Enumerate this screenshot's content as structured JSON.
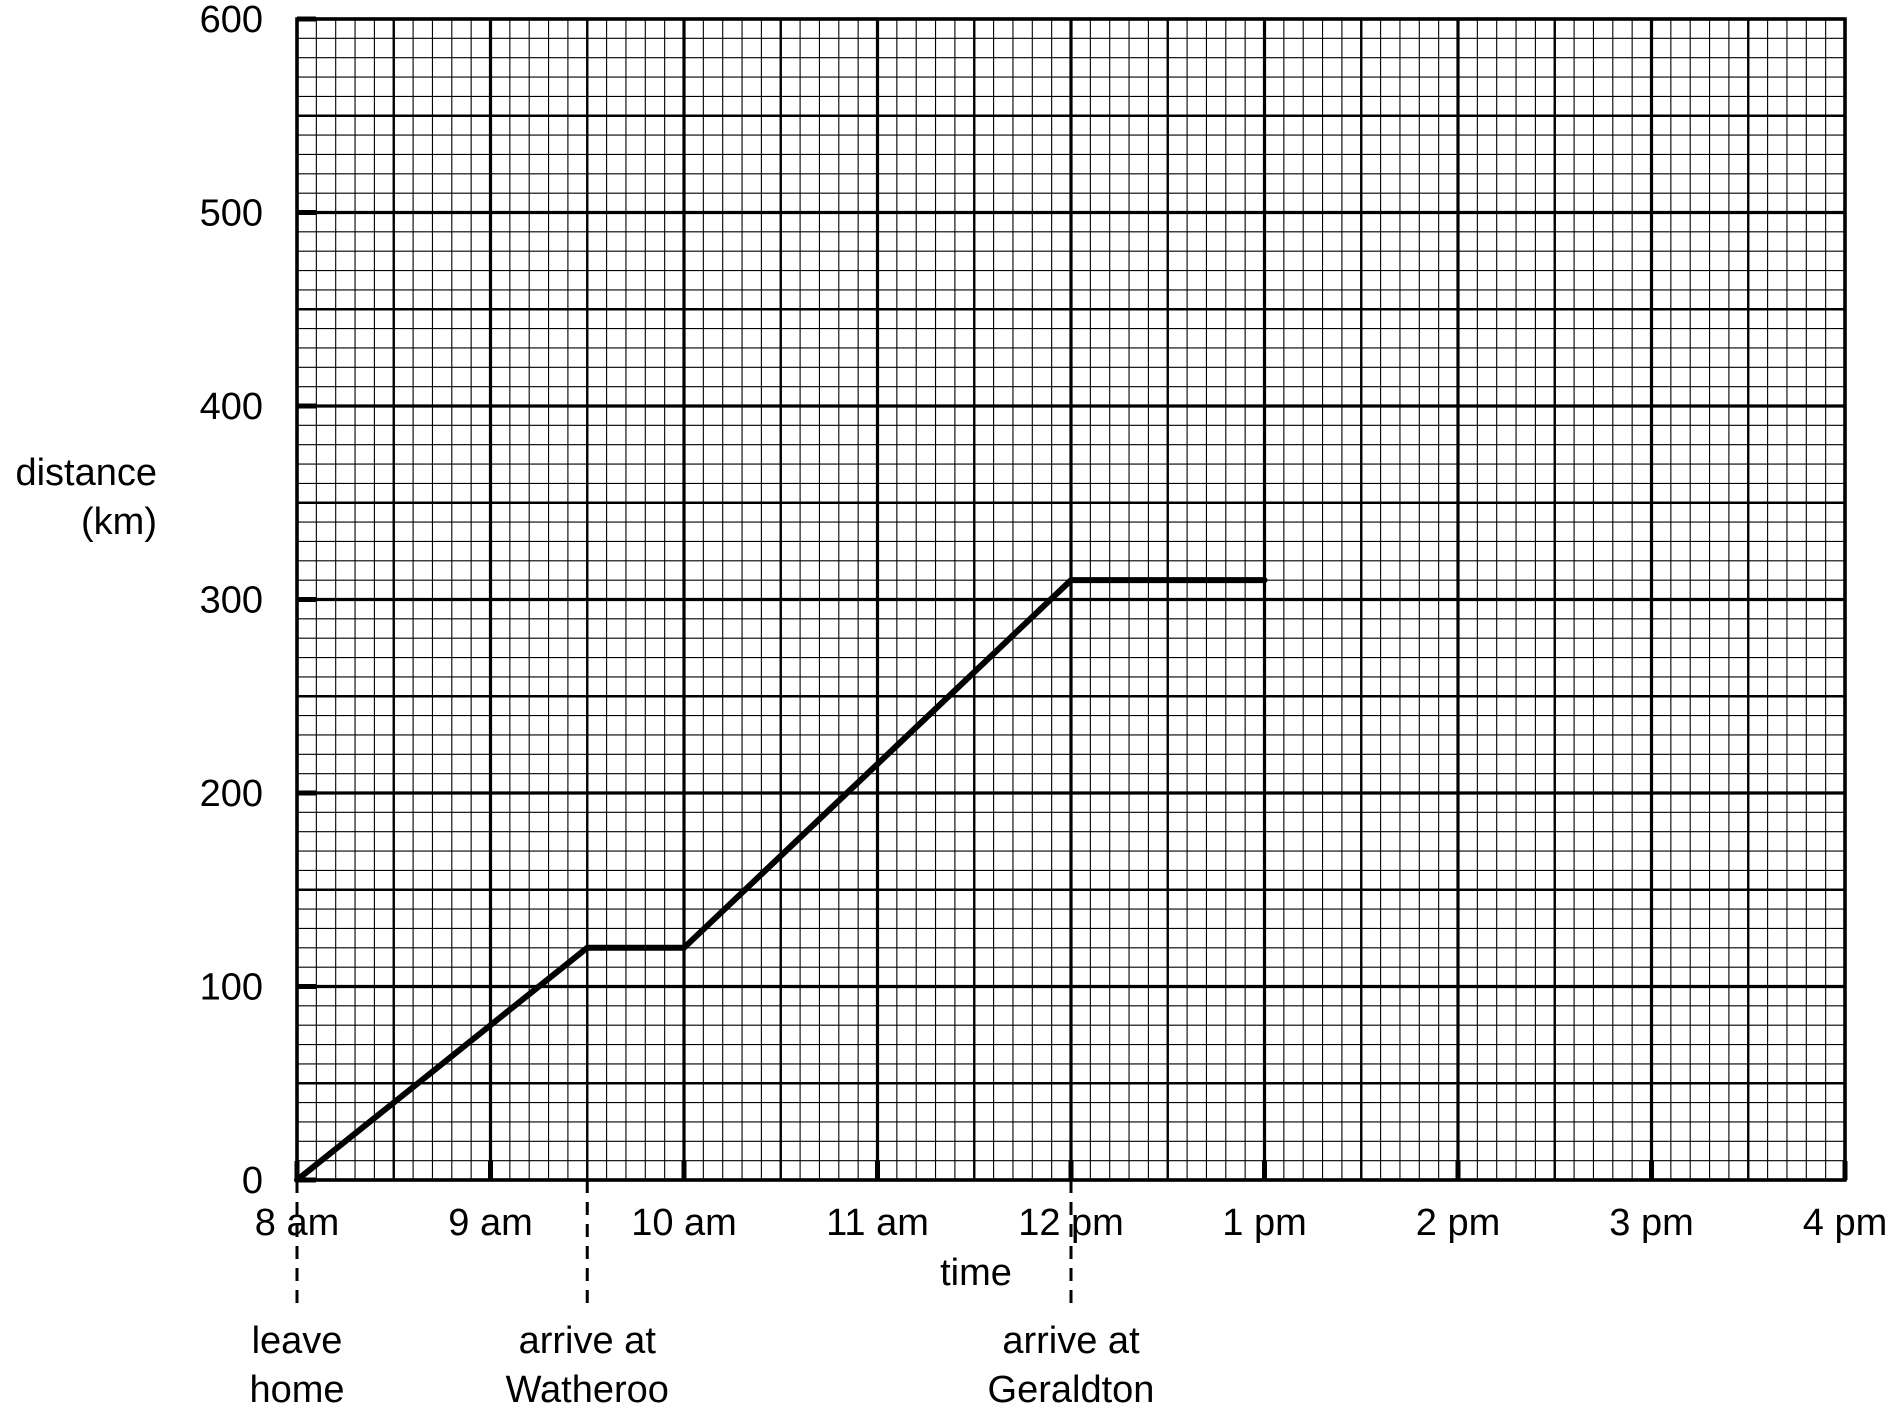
{
  "chart_data": {
    "type": "line",
    "title": "",
    "ylabel_line1": "distance",
    "ylabel_line2": "(km)",
    "xlabel": "time",
    "x_ticks": [
      "8 am",
      "9 am",
      "10 am",
      "11 am",
      "12 pm",
      "1 pm",
      "2 pm",
      "3 pm",
      "4 pm"
    ],
    "x_unit": "hours after 8 am",
    "xlim": [
      0,
      8
    ],
    "y_ticks": [
      0,
      100,
      200,
      300,
      400,
      500,
      600
    ],
    "ylim": [
      0,
      600
    ],
    "grid": true,
    "series": [
      {
        "x": [
          0,
          1.5,
          2,
          4,
          5
        ],
        "y": [
          0,
          120,
          120,
          310,
          310
        ]
      }
    ],
    "annotations": [
      {
        "x": 0,
        "line1": "leave",
        "line2": "home"
      },
      {
        "x": 1.5,
        "line1": "arrive at",
        "line2": "Watheroo"
      },
      {
        "x": 4,
        "line1": "arrive at",
        "line2": "Geraldton"
      }
    ]
  }
}
